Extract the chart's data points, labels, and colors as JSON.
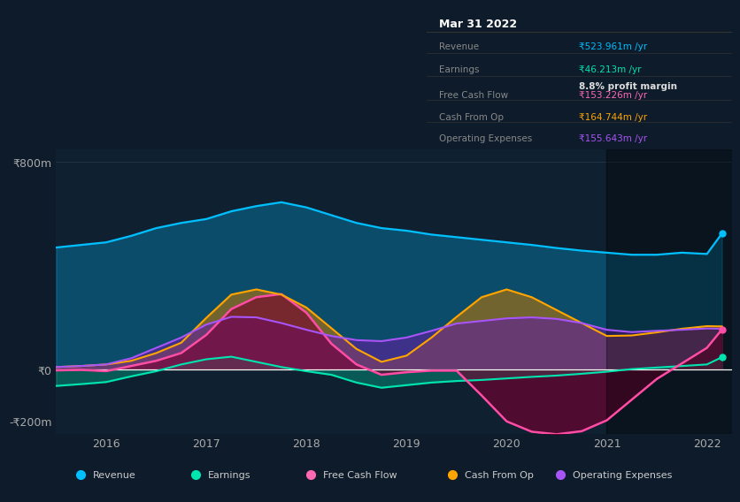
{
  "bg_color": "#0d1b2a",
  "panel_bg": "#0d1b2a",
  "title": "Mar 31 2022",
  "table_data": {
    "Revenue": {
      "value": "₹523.961m /yr",
      "color": "#00bfff"
    },
    "Earnings": {
      "value": "₹46.213m /yr",
      "color": "#00e5b0"
    },
    "profit_margin": {
      "value": "8.8% profit margin",
      "color": "#ffffff"
    },
    "Free Cash Flow": {
      "value": "₹153.226m /yr",
      "color": "#ff69b4"
    },
    "Cash From Op": {
      "value": "₹164.744m /yr",
      "color": "#ffa500"
    },
    "Operating Expenses": {
      "value": "₹155.643m /yr",
      "color": "#a855f7"
    }
  },
  "years": [
    2015.5,
    2015.75,
    2016.0,
    2016.25,
    2016.5,
    2016.75,
    2017.0,
    2017.25,
    2017.5,
    2017.75,
    2018.0,
    2018.25,
    2018.5,
    2018.75,
    2019.0,
    2019.25,
    2019.5,
    2019.75,
    2020.0,
    2020.25,
    2020.5,
    2020.75,
    2021.0,
    2021.25,
    2021.5,
    2021.75,
    2022.0,
    2022.15
  ],
  "revenue": [
    470,
    480,
    490,
    515,
    545,
    565,
    580,
    610,
    630,
    645,
    625,
    595,
    565,
    545,
    535,
    520,
    510,
    500,
    490,
    480,
    468,
    458,
    450,
    442,
    442,
    450,
    445,
    524
  ],
  "earnings": [
    -65,
    -58,
    -50,
    -28,
    -8,
    18,
    38,
    48,
    28,
    8,
    -8,
    -22,
    -52,
    -72,
    -62,
    -52,
    -46,
    -42,
    -36,
    -30,
    -25,
    -18,
    -10,
    0,
    6,
    12,
    18,
    46
  ],
  "free_cash_flow": [
    -5,
    -3,
    -8,
    12,
    32,
    62,
    132,
    232,
    278,
    290,
    218,
    98,
    18,
    -22,
    -12,
    -6,
    -6,
    -102,
    -202,
    -242,
    -252,
    -240,
    -198,
    -118,
    -38,
    22,
    82,
    153
  ],
  "cash_from_op": [
    8,
    12,
    18,
    32,
    62,
    102,
    198,
    288,
    308,
    288,
    238,
    158,
    78,
    28,
    52,
    122,
    202,
    278,
    308,
    278,
    228,
    178,
    128,
    130,
    142,
    156,
    166,
    165
  ],
  "operating_expenses": [
    8,
    12,
    18,
    42,
    82,
    122,
    172,
    202,
    200,
    178,
    152,
    128,
    112,
    108,
    122,
    148,
    176,
    186,
    196,
    200,
    194,
    178,
    152,
    143,
    148,
    152,
    157,
    156
  ],
  "ylim": [
    -250,
    850
  ],
  "yticks": [
    -200,
    0,
    800
  ],
  "ytick_labels": [
    "-₹200m",
    "₹0",
    "₹800m"
  ],
  "xticks": [
    2016,
    2017,
    2018,
    2019,
    2020,
    2021,
    2022
  ],
  "legend_items": [
    {
      "label": "Revenue",
      "color": "#00bfff"
    },
    {
      "label": "Earnings",
      "color": "#00e5b0"
    },
    {
      "label": "Free Cash Flow",
      "color": "#ff69b4"
    },
    {
      "label": "Cash From Op",
      "color": "#ffa500"
    },
    {
      "label": "Operating Expenses",
      "color": "#a855f7"
    }
  ]
}
